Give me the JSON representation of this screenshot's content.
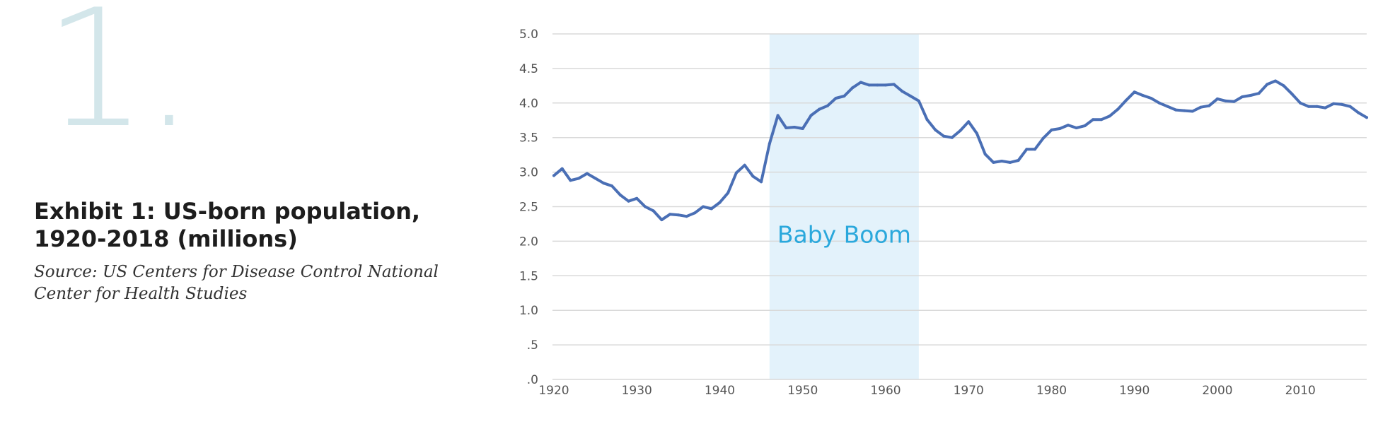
{
  "exhibit_number": "1.",
  "title": "Exhibit 1: US-born population, 1920-2018 (millions)",
  "source": "Source: US Centers for Disease Control National Center for Health Studies",
  "colors": {
    "line": "#4a6fb5",
    "shade": "#e3f2fb",
    "grid": "#d9d9d9",
    "annotation": "#2aa8dc",
    "big_number": "#d3e6ea"
  },
  "chart_data": {
    "type": "line",
    "title": "",
    "xlabel": "",
    "ylabel": "",
    "xlim": [
      1920,
      2018
    ],
    "ylim": [
      0,
      5
    ],
    "grid": true,
    "x_ticks": [
      1920,
      1930,
      1940,
      1950,
      1960,
      1970,
      1980,
      1990,
      2000,
      2010
    ],
    "y_ticks": [
      {
        "value": 0,
        "label": ".0"
      },
      {
        "value": 0.5,
        "label": ".5"
      },
      {
        "value": 1.0,
        "label": "1.0"
      },
      {
        "value": 1.5,
        "label": "1.5"
      },
      {
        "value": 2.0,
        "label": "2.0"
      },
      {
        "value": 2.5,
        "label": "2.5"
      },
      {
        "value": 3.0,
        "label": "3.0"
      },
      {
        "value": 3.5,
        "label": "3.5"
      },
      {
        "value": 4.0,
        "label": "4.0"
      },
      {
        "value": 4.5,
        "label": "4.5"
      },
      {
        "value": 5.0,
        "label": "5.0"
      }
    ],
    "shaded_region": {
      "x_start": 1946,
      "x_end": 1964,
      "label": "Baby Boom"
    },
    "series": [
      {
        "values": [
          [
            1920,
            2.95
          ],
          [
            1921,
            3.05
          ],
          [
            1922,
            2.88
          ],
          [
            1923,
            2.91
          ],
          [
            1924,
            2.98
          ],
          [
            1925,
            2.91
          ],
          [
            1926,
            2.84
          ],
          [
            1927,
            2.8
          ],
          [
            1928,
            2.67
          ],
          [
            1929,
            2.58
          ],
          [
            1930,
            2.62
          ],
          [
            1931,
            2.5
          ],
          [
            1932,
            2.44
          ],
          [
            1933,
            2.31
          ],
          [
            1934,
            2.39
          ],
          [
            1935,
            2.38
          ],
          [
            1936,
            2.36
          ],
          [
            1937,
            2.41
          ],
          [
            1938,
            2.5
          ],
          [
            1939,
            2.47
          ],
          [
            1940,
            2.56
          ],
          [
            1941,
            2.7
          ],
          [
            1942,
            2.99
          ],
          [
            1943,
            3.1
          ],
          [
            1944,
            2.94
          ],
          [
            1945,
            2.86
          ],
          [
            1946,
            3.41
          ],
          [
            1947,
            3.82
          ],
          [
            1948,
            3.64
          ],
          [
            1949,
            3.65
          ],
          [
            1950,
            3.63
          ],
          [
            1951,
            3.82
          ],
          [
            1952,
            3.91
          ],
          [
            1953,
            3.96
          ],
          [
            1954,
            4.07
          ],
          [
            1955,
            4.1
          ],
          [
            1956,
            4.22
          ],
          [
            1957,
            4.3
          ],
          [
            1958,
            4.26
          ],
          [
            1959,
            4.26
          ],
          [
            1960,
            4.26
          ],
          [
            1961,
            4.27
          ],
          [
            1962,
            4.17
          ],
          [
            1963,
            4.1
          ],
          [
            1964,
            4.03
          ],
          [
            1965,
            3.76
          ],
          [
            1966,
            3.61
          ],
          [
            1967,
            3.52
          ],
          [
            1968,
            3.5
          ],
          [
            1969,
            3.6
          ],
          [
            1970,
            3.73
          ],
          [
            1971,
            3.56
          ],
          [
            1972,
            3.26
          ],
          [
            1973,
            3.14
          ],
          [
            1974,
            3.16
          ],
          [
            1975,
            3.14
          ],
          [
            1976,
            3.17
          ],
          [
            1977,
            3.33
          ],
          [
            1978,
            3.33
          ],
          [
            1979,
            3.49
          ],
          [
            1980,
            3.61
          ],
          [
            1981,
            3.63
          ],
          [
            1982,
            3.68
          ],
          [
            1983,
            3.64
          ],
          [
            1984,
            3.67
          ],
          [
            1985,
            3.76
          ],
          [
            1986,
            3.76
          ],
          [
            1987,
            3.81
          ],
          [
            1988,
            3.91
          ],
          [
            1989,
            4.04
          ],
          [
            1990,
            4.16
          ],
          [
            1991,
            4.11
          ],
          [
            1992,
            4.07
          ],
          [
            1993,
            4.0
          ],
          [
            1994,
            3.95
          ],
          [
            1995,
            3.9
          ],
          [
            1996,
            3.89
          ],
          [
            1997,
            3.88
          ],
          [
            1998,
            3.94
          ],
          [
            1999,
            3.96
          ],
          [
            2000,
            4.06
          ],
          [
            2001,
            4.03
          ],
          [
            2002,
            4.02
          ],
          [
            2003,
            4.09
          ],
          [
            2004,
            4.11
          ],
          [
            2005,
            4.14
          ],
          [
            2006,
            4.27
          ],
          [
            2007,
            4.32
          ],
          [
            2008,
            4.25
          ],
          [
            2009,
            4.13
          ],
          [
            2010,
            4.0
          ],
          [
            2011,
            3.95
          ],
          [
            2012,
            3.95
          ],
          [
            2013,
            3.93
          ],
          [
            2014,
            3.99
          ],
          [
            2015,
            3.98
          ],
          [
            2016,
            3.95
          ],
          [
            2017,
            3.86
          ],
          [
            2018,
            3.79
          ]
        ]
      }
    ]
  }
}
